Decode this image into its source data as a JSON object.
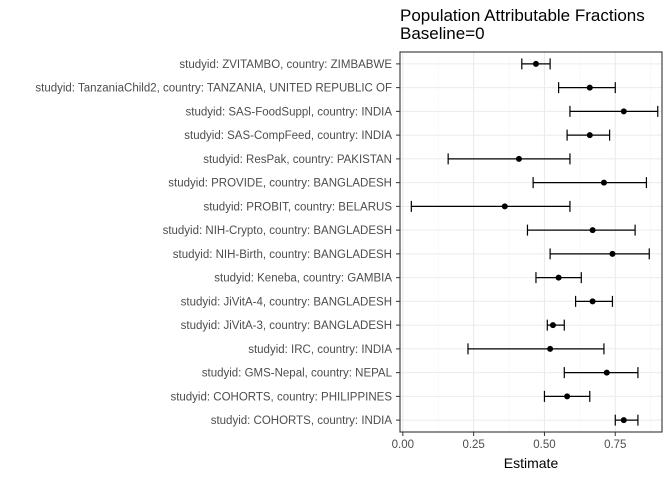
{
  "chart_data": {
    "type": "forest",
    "title": "Population Attributable Fractions",
    "subtitle": "Baseline=0",
    "xlabel": "Estimate",
    "ylabel": "",
    "xlim": [
      -0.01,
      0.915
    ],
    "x_ticks": [
      0.0,
      0.25,
      0.5,
      0.75
    ],
    "x_tick_labels": [
      "0.00",
      "0.25",
      "0.50",
      "0.75"
    ],
    "grid": true,
    "legend": "none",
    "categories": [
      "studyid: ZVITAMBO, country: ZIMBABWE",
      "studyid: TanzaniaChild2, country: TANZANIA, UNITED REPUBLIC OF",
      "studyid: SAS-FoodSuppl, country: INDIA",
      "studyid: SAS-CompFeed, country: INDIA",
      "studyid: ResPak, country: PAKISTAN",
      "studyid: PROVIDE, country: BANGLADESH",
      "studyid: PROBIT, country: BELARUS",
      "studyid: NIH-Crypto, country: BANGLADESH",
      "studyid: NIH-Birth, country: BANGLADESH",
      "studyid: Keneba, country: GAMBIA",
      "studyid: JiVitA-4, country: BANGLADESH",
      "studyid: JiVitA-3, country: BANGLADESH",
      "studyid: IRC, country: INDIA",
      "studyid: GMS-Nepal, country: NEPAL",
      "studyid: COHORTS, country: PHILIPPINES",
      "studyid: COHORTS, country: INDIA"
    ],
    "estimates": [
      0.47,
      0.66,
      0.78,
      0.66,
      0.41,
      0.71,
      0.36,
      0.67,
      0.74,
      0.55,
      0.67,
      0.53,
      0.52,
      0.72,
      0.58,
      0.78
    ],
    "lower": [
      0.42,
      0.55,
      0.59,
      0.58,
      0.16,
      0.46,
      0.03,
      0.44,
      0.52,
      0.47,
      0.61,
      0.51,
      0.23,
      0.57,
      0.5,
      0.75
    ],
    "upper": [
      0.52,
      0.75,
      0.9,
      0.73,
      0.59,
      0.86,
      0.59,
      0.82,
      0.87,
      0.63,
      0.74,
      0.57,
      0.71,
      0.83,
      0.66,
      0.83
    ],
    "colors": {
      "panel_border": "#333333",
      "grid_major": "#ebebeb",
      "grid_minor": "#f5f5f5",
      "marks": "#000000"
    }
  }
}
